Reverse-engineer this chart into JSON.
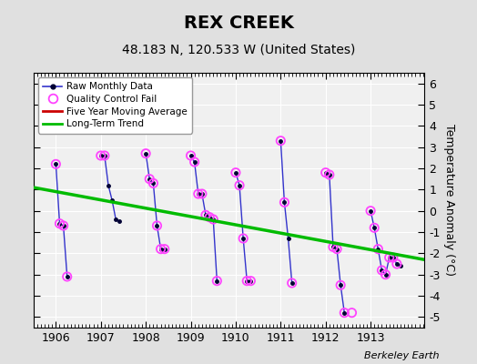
{
  "title": "REX CREEK",
  "subtitle": "48.183 N, 120.533 W (United States)",
  "ylabel": "Temperature Anomaly (°C)",
  "credit": "Berkeley Earth",
  "ylim": [
    -5.5,
    6.5
  ],
  "yticks": [
    -5,
    -4,
    -3,
    -2,
    -1,
    0,
    1,
    2,
    3,
    4,
    5,
    6
  ],
  "xlim": [
    1905.5,
    1914.2
  ],
  "xticks": [
    1906,
    1907,
    1908,
    1909,
    1910,
    1911,
    1912,
    1913
  ],
  "fig_bg_color": "#e0e0e0",
  "plot_bg_color": "#f0f0f0",
  "raw_segments": [
    {
      "x": [
        1906.0,
        1906.083,
        1906.167,
        1906.25
      ],
      "y": [
        2.2,
        -0.6,
        -0.7,
        -3.1
      ]
    },
    {
      "x": [
        1907.0,
        1907.083,
        1907.167,
        1907.25,
        1907.333,
        1907.417
      ],
      "y": [
        2.6,
        2.6,
        1.2,
        0.5,
        -0.4,
        -0.5
      ]
    },
    {
      "x": [
        1908.0,
        1908.083,
        1908.167,
        1908.25,
        1908.333,
        1908.417
      ],
      "y": [
        2.7,
        1.5,
        1.3,
        -0.7,
        -1.8,
        -1.8
      ]
    },
    {
      "x": [
        1909.0,
        1909.083,
        1909.167,
        1909.25,
        1909.333,
        1909.417,
        1909.5,
        1909.583
      ],
      "y": [
        2.6,
        2.3,
        0.8,
        0.8,
        -0.2,
        -0.3,
        -0.4,
        -3.3
      ]
    },
    {
      "x": [
        1910.0,
        1910.083,
        1910.167,
        1910.25,
        1910.333
      ],
      "y": [
        1.8,
        1.2,
        -1.3,
        -3.3,
        -3.3
      ]
    },
    {
      "x": [
        1911.0,
        1911.083,
        1911.167,
        1911.25
      ],
      "y": [
        3.3,
        0.4,
        -1.3,
        -3.4
      ]
    },
    {
      "x": [
        1912.0,
        1912.083,
        1912.167,
        1912.25,
        1912.333,
        1912.417
      ],
      "y": [
        1.8,
        1.7,
        -1.7,
        -1.8,
        -3.5,
        -4.8
      ]
    },
    {
      "x": [
        1913.0,
        1913.083,
        1913.167,
        1913.25,
        1913.333,
        1913.417,
        1913.5,
        1913.583,
        1913.667
      ],
      "y": [
        0.0,
        -0.8,
        -1.8,
        -2.8,
        -3.0,
        -2.2,
        -2.2,
        -2.5,
        -2.6
      ]
    }
  ],
  "qc_x": [
    1906.0,
    1906.083,
    1906.167,
    1906.25,
    1907.0,
    1907.083,
    1908.0,
    1908.083,
    1908.167,
    1908.25,
    1908.333,
    1908.417,
    1909.0,
    1909.083,
    1909.167,
    1909.25,
    1909.333,
    1909.417,
    1909.5,
    1909.583,
    1910.0,
    1910.083,
    1910.167,
    1910.25,
    1910.333,
    1911.0,
    1911.083,
    1911.25,
    1912.0,
    1912.083,
    1912.167,
    1912.25,
    1912.333,
    1912.417,
    1912.583,
    1913.0,
    1913.083,
    1913.167,
    1913.25,
    1913.333,
    1913.417,
    1913.5,
    1913.583
  ],
  "qc_y": [
    2.2,
    -0.6,
    -0.7,
    -3.1,
    2.6,
    2.6,
    2.7,
    1.5,
    1.3,
    -0.7,
    -1.8,
    -1.8,
    2.6,
    2.3,
    0.8,
    0.8,
    -0.2,
    -0.3,
    -0.4,
    -3.3,
    1.8,
    1.2,
    -1.3,
    -3.3,
    -3.3,
    3.3,
    0.4,
    -3.4,
    1.8,
    1.7,
    -1.7,
    -1.8,
    -3.5,
    -4.8,
    -4.8,
    0.0,
    -0.8,
    -1.8,
    -2.8,
    -3.0,
    -2.2,
    -2.2,
    -2.5
  ],
  "trend_x": [
    1905.5,
    1914.2
  ],
  "trend_y": [
    1.1,
    -2.3
  ],
  "raw_color": "#3333cc",
  "dot_color": "#000033",
  "qc_color": "#ff44ff",
  "trend_color": "#00bb00",
  "mavg_color": "#cc0000",
  "title_fontsize": 14,
  "subtitle_fontsize": 10,
  "tick_fontsize": 9,
  "ylabel_fontsize": 9
}
